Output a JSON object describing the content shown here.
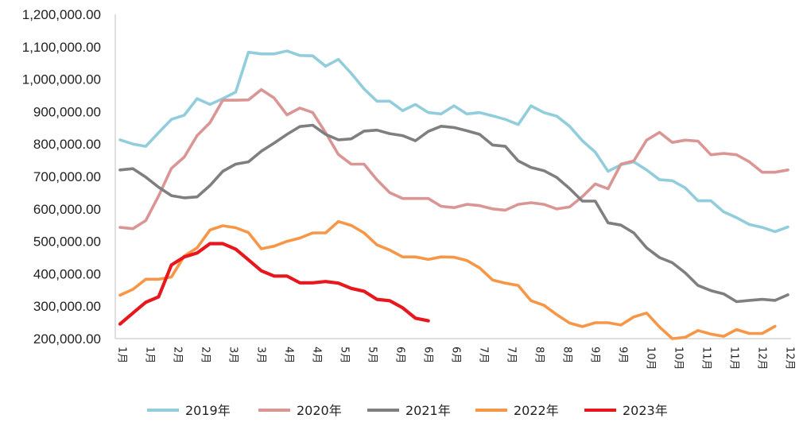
{
  "chart_data": {
    "type": "line",
    "ylim": [
      200000,
      1200000
    ],
    "grid": false,
    "legend_position": "bottom",
    "y_ticks": [
      "200,000.00",
      "300,000.00",
      "400,000.00",
      "500,000.00",
      "600,000.00",
      "700,000.00",
      "800,000.00",
      "900,000.00",
      "1,000,000.00",
      "1,100,000.00",
      "1,200,000.00"
    ],
    "y_tick_values": [
      200000,
      300000,
      400000,
      500000,
      600000,
      700000,
      800000,
      900000,
      1000000,
      1100000,
      1200000
    ],
    "x_labels": [
      "1月",
      "1月",
      "2月",
      "2月",
      "3月",
      "3月",
      "4月",
      "4月",
      "5月",
      "5月",
      "6月",
      "6月",
      "6月",
      "7月",
      "7月",
      "8月",
      "8月",
      "9月",
      "9月",
      "10月",
      "10月",
      "11月",
      "11月",
      "12月",
      "12月"
    ],
    "points_per_series_max": 53,
    "series": [
      {
        "name": "2019年",
        "color": "#92CDDC",
        "values": [
          813000,
          800000,
          793000,
          835000,
          876000,
          889000,
          940000,
          922000,
          940000,
          960000,
          1083000,
          1078000,
          1078000,
          1087000,
          1073000,
          1072000,
          1040000,
          1061000,
          1018000,
          970000,
          932000,
          932000,
          903000,
          922000,
          897000,
          893000,
          918000,
          893000,
          897000,
          887000,
          876000,
          860000,
          918000,
          897000,
          886000,
          855000,
          810000,
          775000,
          716000,
          736000,
          745000,
          720000,
          690000,
          687000,
          665000,
          625000,
          625000,
          591000,
          573000,
          552000,
          543000,
          530000,
          544000
        ]
      },
      {
        "name": "2020年",
        "color": "#D99694",
        "values": [
          543000,
          539000,
          564000,
          640000,
          725000,
          760000,
          826000,
          866000,
          935000,
          935000,
          936000,
          968000,
          942000,
          890000,
          911000,
          897000,
          835000,
          768000,
          738000,
          738000,
          690000,
          650000,
          632000,
          632000,
          632000,
          608000,
          604000,
          614000,
          610000,
          600000,
          596000,
          614000,
          619000,
          614000,
          600000,
          606000,
          638000,
          677000,
          662000,
          738000,
          748000,
          812000,
          836000,
          805000,
          812000,
          809000,
          767000,
          771000,
          767000,
          745000,
          713000,
          713000,
          720000
        ]
      },
      {
        "name": "2021年",
        "color": "#7F7F7F",
        "values": [
          720000,
          724000,
          698000,
          667000,
          641000,
          634000,
          637000,
          672000,
          716000,
          738000,
          745000,
          778000,
          803000,
          830000,
          854000,
          858000,
          830000,
          813000,
          816000,
          840000,
          843000,
          832000,
          826000,
          810000,
          839000,
          855000,
          851000,
          841000,
          830000,
          797000,
          793000,
          748000,
          728000,
          718000,
          697000,
          663000,
          624000,
          624000,
          557000,
          550000,
          526000,
          480000,
          450000,
          434000,
          403000,
          364000,
          348000,
          338000,
          314000,
          318000,
          321000,
          318000,
          335000
        ]
      },
      {
        "name": "2022年",
        "color": "#F79646",
        "values": [
          334000,
          352000,
          383000,
          383000,
          390000,
          455000,
          480000,
          535000,
          548000,
          542000,
          527000,
          477000,
          485000,
          500000,
          510000,
          526000,
          526000,
          561000,
          549000,
          526000,
          489000,
          473000,
          452000,
          452000,
          444000,
          452000,
          451000,
          441000,
          418000,
          381000,
          371000,
          364000,
          317000,
          303000,
          274000,
          248000,
          237000,
          249000,
          249000,
          242000,
          267000,
          279000,
          236000,
          200000,
          204000,
          225000,
          214000,
          207000,
          228000,
          216000,
          216000,
          238000
        ]
      },
      {
        "name": "2023年",
        "color": "#E8161D",
        "values": [
          245000,
          279000,
          312000,
          329000,
          427000,
          452000,
          464000,
          493000,
          493000,
          476000,
          443000,
          409000,
          393000,
          393000,
          372000,
          372000,
          376000,
          371000,
          355000,
          346000,
          321000,
          317000,
          295000,
          263000,
          255000
        ]
      }
    ]
  }
}
